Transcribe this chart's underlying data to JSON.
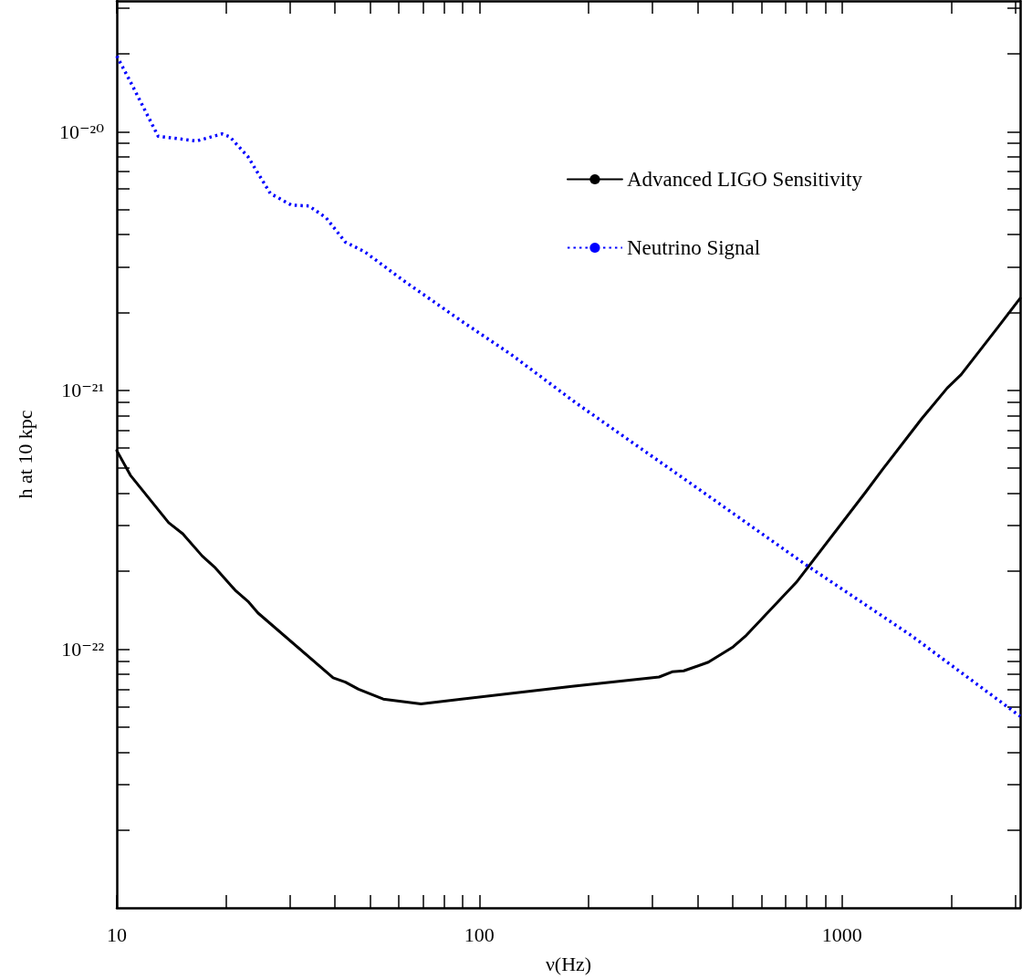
{
  "chart_data": {
    "type": "line",
    "xlabel": "ν(Hz)",
    "ylabel": "h at 10 kpc",
    "log": "xy",
    "grid": false,
    "legend": "top right",
    "marker": "none",
    "xlim": [
      10,
      3100
    ],
    "ylim": [
      1e-23,
      3.2e-20
    ],
    "xticks": [
      10,
      {
        "value": 20,
        "label": null
      },
      {
        "value": 30,
        "label": null
      },
      {
        "value": 40,
        "label": null
      },
      {
        "value": 50,
        "label": null
      },
      {
        "value": 60,
        "label": null
      },
      {
        "value": 70,
        "label": null
      },
      {
        "value": 80,
        "label": null
      },
      {
        "value": 90,
        "label": null
      },
      100,
      {
        "value": 200,
        "label": null
      },
      {
        "value": 300,
        "label": null
      },
      {
        "value": 400,
        "label": null
      },
      {
        "value": 500,
        "label": null
      },
      {
        "value": 600,
        "label": null
      },
      {
        "value": 700,
        "label": null
      },
      {
        "value": 800,
        "label": null
      },
      {
        "value": 900,
        "label": null
      },
      1000,
      {
        "value": 2000,
        "label": null
      },
      {
        "value": 3000,
        "label": null
      }
    ],
    "yticks": [
      {
        "value": 2e-23,
        "label": null
      },
      {
        "value": 3e-23,
        "label": null
      },
      {
        "value": 4e-23,
        "label": null
      },
      {
        "value": 5e-23,
        "label": null
      },
      {
        "value": 6e-23,
        "label": null
      },
      {
        "value": 7e-23,
        "label": null
      },
      {
        "value": 8e-23,
        "label": null
      },
      {
        "value": 9e-23,
        "label": null
      },
      {
        "value": 1e-22,
        "label": "10⁻²²"
      },
      {
        "value": 2e-22,
        "label": null
      },
      {
        "value": 3e-22,
        "label": null
      },
      {
        "value": 4e-22,
        "label": null
      },
      {
        "value": 5e-22,
        "label": null
      },
      {
        "value": 6e-22,
        "label": null
      },
      {
        "value": 7e-22,
        "label": null
      },
      {
        "value": 8e-22,
        "label": null
      },
      {
        "value": 9e-22,
        "label": null
      },
      {
        "value": 1e-21,
        "label": "10⁻²¹"
      },
      {
        "value": 2e-21,
        "label": null
      },
      {
        "value": 3e-21,
        "label": null
      },
      {
        "value": 4e-21,
        "label": null
      },
      {
        "value": 5e-21,
        "label": null
      },
      {
        "value": 6e-21,
        "label": null
      },
      {
        "value": 7e-21,
        "label": null
      },
      {
        "value": 8e-21,
        "label": null
      },
      {
        "value": 9e-21,
        "label": null
      },
      {
        "value": 1e-20,
        "label": "10⁻²⁰"
      },
      {
        "value": 2e-20,
        "label": null
      },
      {
        "value": 3e-20,
        "label": null
      }
    ],
    "series": [
      {
        "name": "Advanced LIGO Sensitivity",
        "color": "#000000",
        "line_style": "solid",
        "x": [
          10,
          10.9,
          13.9,
          15.2,
          17.2,
          18.7,
          21.2,
          23.0,
          24.5,
          39.5,
          42.7,
          46.4,
          54.3,
          69.0,
          122,
          180,
          313,
          340,
          366,
          428,
          501,
          541,
          748,
          1160,
          1300,
          1660,
          1950,
          2130,
          2680,
          3100
        ],
        "values": [
          5.85e-22,
          4.7e-22,
          3.08e-22,
          2.79e-22,
          2.29e-22,
          2.06e-22,
          1.69e-22,
          1.53e-22,
          1.38e-22,
          7.75e-23,
          7.45e-23,
          7e-23,
          6.41e-23,
          6.14e-23,
          6.74e-23,
          7.18e-23,
          7.8e-23,
          8.17e-23,
          8.24e-23,
          8.9e-23,
          1.02e-22,
          1.12e-22,
          1.81e-22,
          4.03e-22,
          4.99e-22,
          7.78e-22,
          1.02e-21,
          1.15e-21,
          1.74e-21,
          2.27e-21
        ]
      },
      {
        "name": "Neutrino Signal",
        "color": "#0000ff",
        "line_style": "dotted",
        "x": [
          10,
          10.9,
          13.0,
          16.6,
          19.5,
          20.5,
          23.0,
          26.5,
          30.3,
          33.9,
          37.8,
          42.7,
          48.3,
          61.9,
          89.9,
          122,
          184,
          413,
          802,
          1550,
          3100
        ],
        "values": [
          1.96e-20,
          1.56e-20,
          9.6e-21,
          9.2e-21,
          9.8e-21,
          9.55e-21,
          8e-21,
          5.77e-21,
          5.2e-21,
          5.16e-21,
          4.64e-21,
          3.74e-21,
          3.43e-21,
          2.65e-21,
          1.84e-21,
          1.38e-21,
          8.97e-22,
          4.05e-22,
          2.1e-22,
          1.13e-22,
          5.5e-23
        ]
      }
    ]
  }
}
